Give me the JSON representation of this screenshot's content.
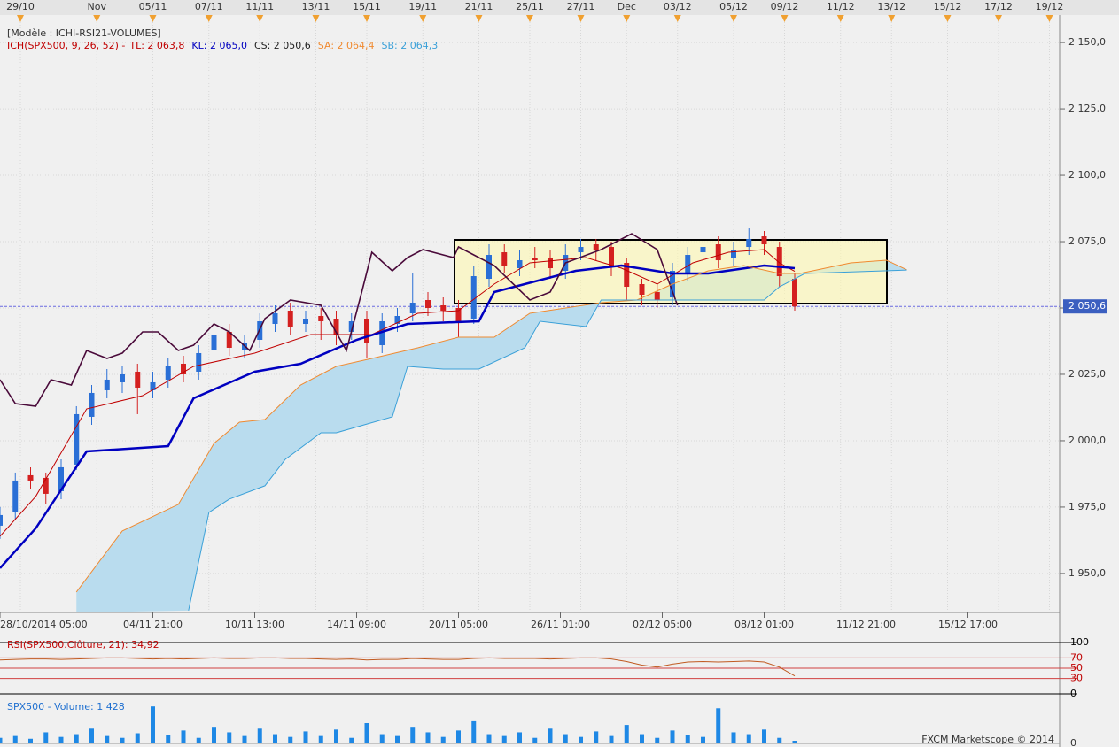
{
  "chart_data": [
    {
      "type": "candlestick",
      "title": "[Modèle : ICHI-RSI21-VOLUMES]",
      "subtitle": "ICH(SPX500, 9, 26, 52) -",
      "up_color": "#2a6fd6",
      "down_color": "#d42020",
      "cloud_color": "#b9dcee",
      "x": [
        0,
        3,
        6,
        9,
        12,
        15,
        18,
        21,
        24,
        27,
        30,
        33,
        36,
        39,
        42,
        45,
        48,
        51,
        54,
        57,
        60,
        63,
        66,
        69,
        72,
        75,
        78,
        81,
        84,
        87,
        90,
        93,
        96,
        99,
        102,
        105,
        108,
        111,
        114,
        117,
        120,
        123,
        126,
        129,
        132,
        135,
        138,
        141,
        144,
        147,
        150,
        153,
        156
      ],
      "open": [
        1968,
        1973,
        1987,
        1986,
        1981,
        1991,
        2009,
        2019,
        2022,
        2026,
        2019,
        2023,
        2029,
        2026,
        2034,
        2041,
        2034,
        2038,
        2044,
        2049,
        2044,
        2047,
        2046,
        2041,
        2046,
        2036,
        2044,
        2048,
        2053,
        2051,
        2050,
        2046,
        2061,
        2071,
        2065,
        2069,
        2069,
        2064,
        2071,
        2074,
        2073,
        2067,
        2059,
        2056,
        2054,
        2063,
        2071,
        2074,
        2069,
        2073,
        2077,
        2073,
        2061
      ],
      "high": [
        1975,
        1988,
        1990,
        1988,
        1993,
        2013,
        2021,
        2027,
        2028,
        2029,
        2026,
        2031,
        2032,
        2036,
        2043,
        2044,
        2040,
        2048,
        2051,
        2052,
        2049,
        2050,
        2049,
        2048,
        2049,
        2048,
        2050,
        2063,
        2056,
        2054,
        2053,
        2066,
        2074,
        2074,
        2072,
        2073,
        2072,
        2074,
        2076,
        2076,
        2075,
        2069,
        2061,
        2059,
        2067,
        2073,
        2076,
        2077,
        2075,
        2080,
        2079,
        2075,
        2063
      ],
      "low": [
        1963,
        1970,
        1982,
        1976,
        1978,
        1989,
        2006,
        2016,
        2018,
        2010,
        2016,
        2020,
        2022,
        2023,
        2031,
        2032,
        2031,
        2035,
        2041,
        2040,
        2041,
        2038,
        2036,
        2038,
        2031,
        2033,
        2041,
        2045,
        2047,
        2045,
        2039,
        2044,
        2058,
        2063,
        2062,
        2065,
        2061,
        2061,
        2068,
        2068,
        2062,
        2053,
        2051,
        2050,
        2051,
        2060,
        2068,
        2065,
        2066,
        2070,
        2070,
        2058,
        2049
      ],
      "close": [
        1972,
        1985,
        1985,
        1980,
        1990,
        2010,
        2018,
        2023,
        2025,
        2020,
        2022,
        2028,
        2025,
        2033,
        2040,
        2035,
        2037,
        2045,
        2048,
        2043,
        2046,
        2045,
        2040,
        2045,
        2037,
        2045,
        2047,
        2052,
        2050,
        2049,
        2045,
        2062,
        2070,
        2066,
        2068,
        2068,
        2065,
        2070,
        2073,
        2072,
        2066,
        2058,
        2055,
        2053,
        2064,
        2070,
        2073,
        2068,
        2072,
        2076,
        2074,
        2062,
        2050.6
      ],
      "series": [
        {
          "name": "TL: 2 063,8",
          "color": "#c00000",
          "x": [
            0,
            7,
            17,
            28,
            38,
            50,
            61,
            73,
            82,
            90,
            97,
            104,
            115,
            122,
            129,
            136,
            143,
            150,
            153,
            156
          ],
          "values": [
            1964,
            1979,
            2012,
            2017,
            2028,
            2033,
            2040,
            2040,
            2048,
            2049,
            2059,
            2067,
            2069,
            2065,
            2059,
            2067,
            2071,
            2072,
            2067,
            2063.8
          ]
        },
        {
          "name": "KL: 2 065,0",
          "color": "#0000c0",
          "x": [
            0,
            7,
            17,
            33,
            38,
            50,
            59,
            70,
            80,
            94,
            97,
            113,
            122,
            132,
            139,
            150,
            156
          ],
          "values": [
            1952,
            1967,
            1996,
            1998,
            2016,
            2026,
            2029,
            2038,
            2044,
            2045,
            2056,
            2064,
            2066,
            2063,
            2063,
            2066,
            2065
          ]
        },
        {
          "name": "CS: 2 050,6",
          "color": "#4a0a3a",
          "x": [
            0,
            3,
            7,
            10,
            14,
            17,
            21,
            24,
            28,
            31,
            35,
            38,
            42,
            45,
            49,
            52,
            57,
            63,
            68,
            71,
            73,
            77,
            80,
            83,
            89,
            90,
            97,
            104,
            108,
            111,
            118,
            124,
            129,
            133
          ],
          "values": [
            2023,
            2014,
            2013,
            2023,
            2021,
            2034,
            2031,
            2033,
            2041,
            2041,
            2034,
            2036,
            2044,
            2041,
            2034,
            2046,
            2053,
            2051,
            2034,
            2056,
            2071,
            2064,
            2069,
            2072,
            2069,
            2073,
            2066,
            2053,
            2056,
            2067,
            2072,
            2078,
            2072,
            2051
          ]
        },
        {
          "name": "SA: 2 064,4",
          "color": "#f08a30",
          "x": [
            15,
            24,
            35,
            42,
            47,
            52,
            59,
            66,
            73,
            82,
            90,
            97,
            104,
            118,
            125,
            132,
            139,
            146,
            153,
            157,
            167,
            174,
            178
          ],
          "values": [
            1943,
            1966,
            1976,
            1999,
            2007,
            2008,
            2021,
            2028,
            2031,
            2035,
            2039,
            2039,
            2048,
            2052,
            2053,
            2059,
            2064,
            2066,
            2063,
            2063,
            2067,
            2068,
            2064.4
          ]
        },
        {
          "name": "SB: 2 064,3",
          "color": "#3aa0d8",
          "x": [
            37,
            41,
            45,
            52,
            56,
            63,
            66,
            77,
            80,
            87,
            94,
            103,
            106,
            115,
            118,
            132,
            150,
            153,
            158,
            178
          ],
          "values": [
            1936,
            1973,
            1978,
            1983,
            1993,
            2003,
            2003,
            2009,
            2028,
            2027,
            2027,
            2035,
            2045,
            2043,
            2053,
            2053,
            2053,
            2058,
            2063,
            2064.3
          ]
        }
      ],
      "xlim": [
        0,
        208
      ],
      "xticks": [
        {
          "value": 0,
          "label": "28/10/2014 05:00"
        },
        {
          "value": 30,
          "label": "04/11 21:00"
        },
        {
          "value": 50,
          "label": "10/11 13:00"
        },
        {
          "value": 70,
          "label": "14/11 09:00"
        },
        {
          "value": 90,
          "label": "20/11 05:00"
        },
        {
          "value": 110,
          "label": "26/11 01:00"
        },
        {
          "value": 130,
          "label": "02/12 05:00"
        },
        {
          "value": 150,
          "label": "08/12 01:00"
        },
        {
          "value": 170,
          "label": "11/12 21:00"
        },
        {
          "value": 190,
          "label": "15/12 17:00"
        }
      ],
      "xticks_top": [
        {
          "value": 4,
          "label": "29/10"
        },
        {
          "value": 19,
          "label": "Nov"
        },
        {
          "value": 30,
          "label": "05/11"
        },
        {
          "value": 41,
          "label": "07/11"
        },
        {
          "value": 51,
          "label": "11/11"
        },
        {
          "value": 62,
          "label": "13/11"
        },
        {
          "value": 72,
          "label": "15/11"
        },
        {
          "value": 83,
          "label": "19/11"
        },
        {
          "value": 94,
          "label": "21/11"
        },
        {
          "value": 104,
          "label": "25/11"
        },
        {
          "value": 114,
          "label": "27/11"
        },
        {
          "value": 123,
          "label": "Dec"
        },
        {
          "value": 133,
          "label": "03/12"
        },
        {
          "value": 144,
          "label": "05/12"
        },
        {
          "value": 154,
          "label": "09/12"
        },
        {
          "value": 165,
          "label": "11/12"
        },
        {
          "value": 175,
          "label": "13/12"
        },
        {
          "value": 186,
          "label": "15/12"
        },
        {
          "value": 196,
          "label": "17/12"
        },
        {
          "value": 206,
          "label": "19/12"
        }
      ],
      "ylim": [
        1935.3,
        2158.7
      ],
      "yticks": [
        {
          "value": 1950,
          "label": "1 950,0"
        },
        {
          "value": 1975,
          "label": "1 975,0"
        },
        {
          "value": 2000,
          "label": "2 000,0"
        },
        {
          "value": 2025,
          "label": "2 025,0"
        },
        {
          "value": 2050,
          "label": "2 050,0"
        },
        {
          "value": 2075,
          "label": "2 075,0"
        },
        {
          "value": 2100,
          "label": "2 100,0"
        },
        {
          "value": 2125,
          "label": "2 125,0"
        },
        {
          "value": 2150,
          "label": "2 150,0"
        }
      ],
      "last_price": {
        "value": 2050.6,
        "label": "2 050,6"
      },
      "grid": true,
      "footer": "FXCM Marketscope © 2014"
    },
    {
      "type": "line",
      "title": "RSI(SPX500.Clôture, 21): 34,92",
      "color": "#c05a20",
      "x": [
        0,
        3,
        6,
        9,
        12,
        15,
        18,
        21,
        24,
        27,
        30,
        33,
        36,
        39,
        42,
        45,
        48,
        51,
        54,
        57,
        60,
        63,
        66,
        69,
        72,
        75,
        78,
        81,
        84,
        87,
        90,
        93,
        96,
        99,
        102,
        105,
        108,
        111,
        114,
        117,
        120,
        123,
        126,
        129,
        132,
        135,
        138,
        141,
        144,
        147,
        150,
        153,
        156
      ],
      "values": [
        66,
        67,
        68,
        68,
        67,
        68,
        69,
        70,
        70,
        69,
        68,
        69,
        68,
        69,
        70,
        69,
        69,
        70,
        70,
        69,
        69,
        68,
        67,
        68,
        66,
        67,
        67,
        69,
        68,
        67,
        67,
        69,
        70,
        69,
        69,
        69,
        68,
        69,
        70,
        70,
        68,
        63,
        56,
        52,
        58,
        62,
        63,
        62,
        63,
        64,
        62,
        52,
        34.92
      ],
      "ylim": [
        0,
        100
      ],
      "yticks": [
        100,
        70,
        50,
        30,
        0
      ]
    },
    {
      "type": "bar",
      "title": "SPX500 - Volume: 1 428",
      "color": "#1e88e5",
      "x": [
        0,
        3,
        6,
        9,
        12,
        15,
        18,
        21,
        24,
        27,
        30,
        33,
        36,
        39,
        42,
        45,
        48,
        51,
        54,
        57,
        60,
        63,
        66,
        69,
        72,
        75,
        78,
        81,
        84,
        87,
        90,
        93,
        96,
        99,
        102,
        105,
        108,
        111,
        114,
        117,
        120,
        123,
        126,
        129,
        132,
        135,
        138,
        141,
        144,
        147,
        150,
        153,
        156
      ],
      "values": [
        3000,
        4000,
        2500,
        6000,
        3500,
        5000,
        8000,
        4000,
        3000,
        5500,
        20000,
        4500,
        7000,
        3000,
        9000,
        6000,
        4000,
        8000,
        5000,
        3500,
        6500,
        4000,
        7500,
        3000,
        11000,
        5000,
        4000,
        9000,
        6000,
        3500,
        7000,
        12000,
        5000,
        4000,
        6000,
        3000,
        8000,
        5000,
        3500,
        6500,
        4000,
        10000,
        5000,
        3000,
        7000,
        4500,
        3500,
        19000,
        6000,
        5000,
        7500,
        3000,
        1428
      ],
      "ylim": [
        0,
        22000
      ],
      "yticks": [
        0
      ]
    }
  ]
}
